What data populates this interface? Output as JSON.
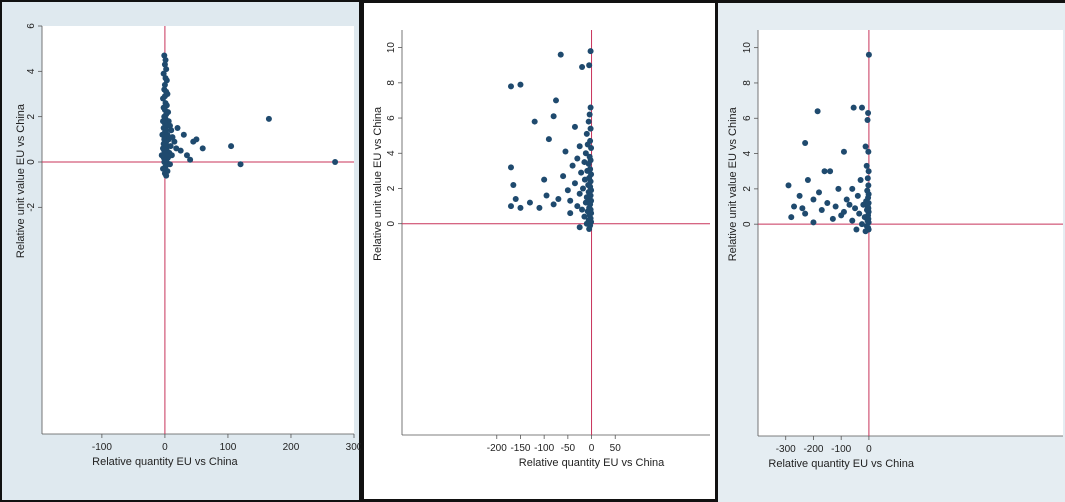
{
  "colors": {
    "point": "#1f4a6e",
    "refline": "#c8335a",
    "axis": "#555555"
  },
  "chart_data": [
    {
      "type": "scatter",
      "xlabel": "Relative quantity EU vs China",
      "ylabel": "Relative unit value EU vs China",
      "xlim": [
        -195,
        300
      ],
      "ylim": [
        -12,
        6
      ],
      "x_ticks": [
        -100,
        0,
        100,
        200,
        300
      ],
      "y_ticks": [
        -2,
        0,
        2,
        4,
        6
      ],
      "reference_lines": {
        "x": 0,
        "y": 0
      },
      "points": [
        [
          -1,
          4.7
        ],
        [
          1,
          4.5
        ],
        [
          0,
          4.3
        ],
        [
          2,
          4.1
        ],
        [
          -2,
          3.9
        ],
        [
          1,
          3.7
        ],
        [
          3,
          3.6
        ],
        [
          0,
          3.4
        ],
        [
          -1,
          3.2
        ],
        [
          2,
          3.1
        ],
        [
          4,
          3.0
        ],
        [
          0,
          2.9
        ],
        [
          -3,
          2.8
        ],
        [
          1,
          2.6
        ],
        [
          3,
          2.5
        ],
        [
          -2,
          2.4
        ],
        [
          0,
          2.3
        ],
        [
          5,
          2.2
        ],
        [
          2,
          2.1
        ],
        [
          -1,
          2.0
        ],
        [
          1,
          1.9
        ],
        [
          6,
          1.8
        ],
        [
          -3,
          1.8
        ],
        [
          0,
          1.7
        ],
        [
          3,
          1.6
        ],
        [
          8,
          1.6
        ],
        [
          -2,
          1.5
        ],
        [
          2,
          1.4
        ],
        [
          10,
          1.4
        ],
        [
          0,
          1.3
        ],
        [
          -4,
          1.2
        ],
        [
          4,
          1.2
        ],
        [
          1,
          1.1
        ],
        [
          12,
          1.1
        ],
        [
          -1,
          1.0
        ],
        [
          6,
          1.0
        ],
        [
          2,
          0.9
        ],
        [
          15,
          0.9
        ],
        [
          -2,
          0.8
        ],
        [
          0,
          0.8
        ],
        [
          4,
          0.7
        ],
        [
          9,
          0.7
        ],
        [
          -3,
          0.6
        ],
        [
          1,
          0.6
        ],
        [
          18,
          0.6
        ],
        [
          -1,
          0.5
        ],
        [
          3,
          0.5
        ],
        [
          7,
          0.4
        ],
        [
          0,
          0.4
        ],
        [
          -5,
          0.3
        ],
        [
          2,
          0.3
        ],
        [
          11,
          0.3
        ],
        [
          -2,
          0.2
        ],
        [
          5,
          0.2
        ],
        [
          0,
          0.1
        ],
        [
          3,
          0.0
        ],
        [
          -1,
          0.0
        ],
        [
          8,
          -0.1
        ],
        [
          1,
          -0.2
        ],
        [
          -3,
          -0.3
        ],
        [
          4,
          -0.4
        ],
        [
          0,
          -0.5
        ],
        [
          2,
          -0.6
        ],
        [
          20,
          1.5
        ],
        [
          30,
          1.2
        ],
        [
          45,
          0.9
        ],
        [
          60,
          0.6
        ],
        [
          35,
          0.3
        ],
        [
          50,
          1.0
        ],
        [
          105,
          0.7
        ],
        [
          120,
          -0.1
        ],
        [
          165,
          1.9
        ],
        [
          270,
          0.0
        ],
        [
          25,
          0.5
        ],
        [
          40,
          0.1
        ]
      ]
    },
    {
      "type": "scatter",
      "xlabel": "Relative quantity EU vs China",
      "ylabel": "Relative unit value EU vs China",
      "xlim": [
        -400,
        250
      ],
      "ylim": [
        -12,
        11
      ],
      "x_ticks": [
        -200,
        -150,
        -100,
        -50,
        0,
        50
      ],
      "x_tick_labels": [
        "-200",
        "-150",
        "-100",
        "-50",
        "0",
        "50"
      ],
      "y_ticks": [
        0,
        2,
        4,
        6,
        8,
        10
      ],
      "reference_lines": {
        "x": 0,
        "y": 0
      },
      "points": [
        [
          -2,
          9.8
        ],
        [
          -5,
          9.0
        ],
        [
          -20,
          8.9
        ],
        [
          -65,
          9.6
        ],
        [
          -150,
          7.9
        ],
        [
          -170,
          7.8
        ],
        [
          -75,
          7.0
        ],
        [
          -2,
          6.6
        ],
        [
          -4,
          6.2
        ],
        [
          -80,
          6.1
        ],
        [
          -120,
          5.8
        ],
        [
          -6,
          5.8
        ],
        [
          -2,
          5.4
        ],
        [
          -35,
          5.5
        ],
        [
          -10,
          5.1
        ],
        [
          -90,
          4.8
        ],
        [
          -3,
          4.7
        ],
        [
          -8,
          4.5
        ],
        [
          -25,
          4.4
        ],
        [
          -1,
          4.3
        ],
        [
          -55,
          4.1
        ],
        [
          -12,
          4.0
        ],
        [
          -4,
          3.8
        ],
        [
          -30,
          3.7
        ],
        [
          -2,
          3.6
        ],
        [
          -15,
          3.5
        ],
        [
          -6,
          3.4
        ],
        [
          -40,
          3.3
        ],
        [
          -170,
          3.2
        ],
        [
          -3,
          3.1
        ],
        [
          -9,
          3.0
        ],
        [
          -22,
          2.9
        ],
        [
          -1,
          2.8
        ],
        [
          -60,
          2.7
        ],
        [
          -5,
          2.6
        ],
        [
          -14,
          2.5
        ],
        [
          -2,
          2.4
        ],
        [
          -35,
          2.3
        ],
        [
          -7,
          2.2
        ],
        [
          -165,
          2.2
        ],
        [
          -3,
          2.1
        ],
        [
          -18,
          2.0
        ],
        [
          -1,
          1.9
        ],
        [
          -50,
          1.9
        ],
        [
          -6,
          1.8
        ],
        [
          -25,
          1.7
        ],
        [
          -2,
          1.6
        ],
        [
          -10,
          1.5
        ],
        [
          -4,
          1.4
        ],
        [
          -70,
          1.4
        ],
        [
          -160,
          1.4
        ],
        [
          -1,
          1.3
        ],
        [
          -12,
          1.2
        ],
        [
          -3,
          1.1
        ],
        [
          -30,
          1.0
        ],
        [
          -170,
          1.0
        ],
        [
          -5,
          0.9
        ],
        [
          -150,
          0.9
        ],
        [
          -2,
          0.8
        ],
        [
          -20,
          0.8
        ],
        [
          -8,
          0.7
        ],
        [
          -1,
          0.6
        ],
        [
          -45,
          0.6
        ],
        [
          -4,
          0.5
        ],
        [
          -15,
          0.4
        ],
        [
          -2,
          0.3
        ],
        [
          -6,
          0.2
        ],
        [
          -1,
          0.1
        ],
        [
          -10,
          0.0
        ],
        [
          -3,
          -0.1
        ],
        [
          -25,
          -0.2
        ],
        [
          -5,
          -0.3
        ],
        [
          -80,
          1.1
        ],
        [
          -110,
          0.9
        ],
        [
          -130,
          1.2
        ],
        [
          -95,
          1.6
        ],
        [
          -100,
          2.5
        ],
        [
          -45,
          1.3
        ]
      ]
    },
    {
      "type": "scatter",
      "xlabel": "Relative quantity EU vs China",
      "ylabel": "Relative unit value EU vs China",
      "xlim": [
        -400,
        700
      ],
      "ylim": [
        -12,
        11
      ],
      "x_ticks": [
        -300,
        -200,
        -100,
        0
      ],
      "y_ticks": [
        0,
        2,
        4,
        6,
        8,
        10
      ],
      "reference_lines": {
        "x": 0,
        "y": 0
      },
      "points": [
        [
          0,
          9.6
        ],
        [
          -25,
          6.6
        ],
        [
          -55,
          6.6
        ],
        [
          -3,
          6.3
        ],
        [
          -185,
          6.4
        ],
        [
          -5,
          5.9
        ],
        [
          -230,
          4.6
        ],
        [
          -12,
          4.4
        ],
        [
          -90,
          4.1
        ],
        [
          -2,
          4.1
        ],
        [
          -140,
          3.0
        ],
        [
          -160,
          3.0
        ],
        [
          -8,
          3.3
        ],
        [
          -1,
          3.0
        ],
        [
          -220,
          2.5
        ],
        [
          -4,
          2.6
        ],
        [
          -30,
          2.5
        ],
        [
          -290,
          2.2
        ],
        [
          -2,
          2.2
        ],
        [
          -110,
          2.0
        ],
        [
          -60,
          2.0
        ],
        [
          -6,
          1.9
        ],
        [
          -180,
          1.8
        ],
        [
          -1,
          1.7
        ],
        [
          -250,
          1.6
        ],
        [
          -40,
          1.6
        ],
        [
          -3,
          1.5
        ],
        [
          -200,
          1.4
        ],
        [
          -80,
          1.4
        ],
        [
          -10,
          1.3
        ],
        [
          -1,
          1.2
        ],
        [
          -150,
          1.2
        ],
        [
          -20,
          1.1
        ],
        [
          -270,
          1.0
        ],
        [
          -4,
          1.0
        ],
        [
          -120,
          1.0
        ],
        [
          -2,
          0.9
        ],
        [
          -50,
          0.9
        ],
        [
          -170,
          0.8
        ],
        [
          -7,
          0.8
        ],
        [
          -1,
          0.7
        ],
        [
          -230,
          0.6
        ],
        [
          -35,
          0.6
        ],
        [
          -3,
          0.5
        ],
        [
          -100,
          0.5
        ],
        [
          -280,
          0.4
        ],
        [
          -15,
          0.4
        ],
        [
          -2,
          0.3
        ],
        [
          -130,
          0.3
        ],
        [
          -60,
          0.2
        ],
        [
          -5,
          0.2
        ],
        [
          -1,
          0.1
        ],
        [
          -200,
          0.1
        ],
        [
          -25,
          0.0
        ],
        [
          -8,
          -0.1
        ],
        [
          -3,
          -0.2
        ],
        [
          -45,
          -0.3
        ],
        [
          -1,
          -0.3
        ],
        [
          -12,
          -0.4
        ],
        [
          -70,
          1.1
        ],
        [
          -90,
          0.7
        ],
        [
          -240,
          0.9
        ]
      ]
    }
  ]
}
